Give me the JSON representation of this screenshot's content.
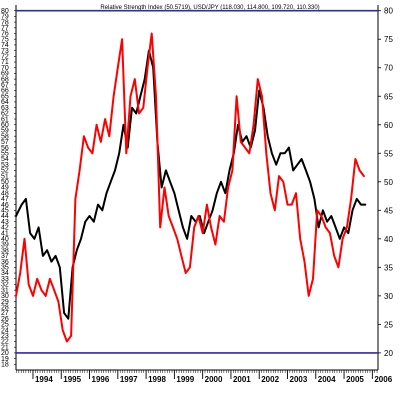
{
  "chart_data": {
    "type": "line",
    "title": "Relative Strength Index (50.5719), USD/JPY (118.030, 114.800, 109.720, 110.330)",
    "xlabel": "",
    "ylabel": "",
    "xlim": [
      1993.4,
      2006.2
    ],
    "ylim": [
      17,
      81
    ],
    "grid": false,
    "right_ticks": [
      20,
      25,
      30,
      35,
      40,
      45,
      50,
      55,
      60,
      65,
      70,
      75,
      80
    ],
    "left_ticks": [
      18,
      19,
      20,
      21,
      22,
      23,
      24,
      25,
      26,
      27,
      28,
      29,
      30,
      31,
      32,
      33,
      34,
      35,
      36,
      37,
      38,
      39,
      40,
      41,
      42,
      43,
      44,
      45,
      46,
      47,
      48,
      49,
      50,
      51,
      52,
      53,
      54,
      55,
      56,
      57,
      58,
      59,
      60,
      61,
      62,
      63,
      64,
      65,
      66,
      67,
      68,
      69,
      70,
      71,
      72,
      73,
      74,
      75,
      76,
      77,
      78,
      79,
      80
    ],
    "year_labels": [
      "1994",
      "1995",
      "1996",
      "1997",
      "1998",
      "1999",
      "2000",
      "2001",
      "2002",
      "2003",
      "2004",
      "2005",
      "2006"
    ],
    "reference_lines": [
      {
        "value": 80,
        "color": "#2b2bb0"
      },
      {
        "value": 20,
        "color": "#2b2bb0"
      }
    ],
    "series": [
      {
        "color": "#000000",
        "x": [
          1993.4,
          1993.6,
          1993.75,
          1993.9,
          1994.05,
          1994.2,
          1994.35,
          1994.5,
          1994.65,
          1994.8,
          1994.95,
          1995.1,
          1995.25,
          1995.4,
          1995.55,
          1995.7,
          1995.85,
          1996.0,
          1996.15,
          1996.3,
          1996.45,
          1996.6,
          1996.75,
          1996.9,
          1997.05,
          1997.2,
          1997.35,
          1997.5,
          1997.65,
          1997.8,
          1997.95,
          1998.1,
          1998.25,
          1998.4,
          1998.55,
          1998.7,
          1998.85,
          1999.0,
          1999.15,
          1999.3,
          1999.45,
          1999.6,
          1999.75,
          1999.9,
          2000.05,
          2000.2,
          2000.35,
          2000.5,
          2000.65,
          2000.8,
          2000.95,
          2001.1,
          2001.25,
          2001.4,
          2001.55,
          2001.7,
          2001.85,
          2002.0,
          2002.15,
          2002.3,
          2002.45,
          2002.6,
          2002.75,
          2002.9,
          2003.05,
          2003.2,
          2003.35,
          2003.5,
          2003.65,
          2003.8,
          2003.95,
          2004.1,
          2004.25,
          2004.4,
          2004.55,
          2004.7,
          2004.85,
          2005.0,
          2005.15,
          2005.3,
          2005.45,
          2005.6,
          2005.75
        ],
        "values": [
          44,
          46,
          47,
          41,
          40,
          42,
          37,
          38,
          36,
          37,
          35,
          27,
          26,
          35,
          38,
          40,
          43,
          44,
          43,
          46,
          45,
          48,
          50,
          52,
          55,
          60,
          56,
          63,
          62,
          65,
          68,
          73,
          70,
          57,
          49,
          52,
          50,
          48,
          45,
          42,
          40,
          44,
          43,
          44,
          41,
          43,
          45,
          48,
          50,
          48,
          52,
          55,
          60,
          57,
          58,
          56,
          59,
          66,
          63,
          58,
          55,
          53,
          55,
          55,
          56,
          52,
          53,
          54,
          52,
          50,
          47,
          42,
          45,
          43,
          44,
          42,
          40,
          42,
          41,
          45,
          47,
          46,
          46
        ]
      },
      {
        "color": "#ff0000",
        "x": [
          1993.4,
          1993.55,
          1993.7,
          1993.85,
          1994.0,
          1994.15,
          1994.3,
          1994.45,
          1994.6,
          1994.75,
          1994.9,
          1995.05,
          1995.2,
          1995.35,
          1995.5,
          1995.65,
          1995.8,
          1995.95,
          1996.1,
          1996.25,
          1996.4,
          1996.55,
          1996.7,
          1996.85,
          1997.0,
          1997.15,
          1997.3,
          1997.45,
          1997.6,
          1997.75,
          1997.9,
          1998.05,
          1998.2,
          1998.35,
          1998.5,
          1998.65,
          1998.8,
          1998.95,
          1999.1,
          1999.25,
          1999.4,
          1999.55,
          1999.7,
          1999.85,
          2000.0,
          2000.15,
          2000.3,
          2000.45,
          2000.6,
          2000.75,
          2000.9,
          2001.05,
          2001.2,
          2001.35,
          2001.5,
          2001.65,
          2001.8,
          2001.95,
          2002.1,
          2002.25,
          2002.4,
          2002.55,
          2002.7,
          2002.85,
          2003.0,
          2003.15,
          2003.3,
          2003.45,
          2003.6,
          2003.75,
          2003.9,
          2004.05,
          2004.2,
          2004.35,
          2004.5,
          2004.65,
          2004.8,
          2004.95,
          2005.1,
          2005.25,
          2005.4,
          2005.55,
          2005.7
        ],
        "values": [
          30,
          34,
          40,
          32,
          30,
          33,
          31,
          30,
          33,
          31,
          29,
          24,
          22,
          23,
          47,
          52,
          58,
          56,
          55,
          60,
          57,
          61,
          58,
          65,
          70,
          75,
          55,
          65,
          68,
          62,
          63,
          70,
          76,
          65,
          42,
          49,
          44,
          42,
          40,
          37,
          34,
          35,
          42,
          44,
          41,
          46,
          42,
          39,
          44,
          43,
          49,
          52,
          65,
          57,
          56,
          55,
          60,
          68,
          65,
          55,
          48,
          45,
          51,
          50,
          46,
          46,
          48,
          40,
          36,
          30,
          33,
          45,
          44,
          42,
          41,
          37,
          35,
          40,
          42,
          47,
          54,
          52,
          51
        ]
      }
    ]
  }
}
